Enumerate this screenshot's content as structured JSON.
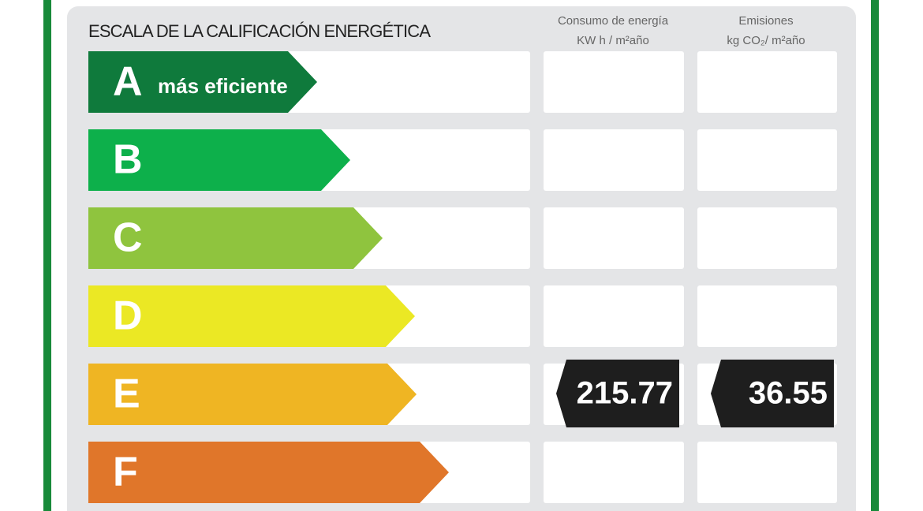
{
  "title": "ESCALA DE LA CALIFICACIÓN ENERGÉTICA",
  "columns": [
    {
      "line_1": "Consumo de energía",
      "line_2": "KW h / m²año"
    },
    {
      "line_1": "Emisiones",
      "line_2": "kg CO₂/ m²año"
    }
  ],
  "rows": [
    {
      "letter": "A",
      "label": "más eficiente",
      "color": "#0f7a3c"
    },
    {
      "letter": "B",
      "color": "#0db04b"
    },
    {
      "letter": "C",
      "color": "#8fc43e"
    },
    {
      "letter": "D",
      "color": "#ebe824"
    },
    {
      "letter": "E",
      "color": "#efb523",
      "energy": 215.77,
      "emissions": 36.55
    },
    {
      "letter": "F",
      "color": "#e0762a"
    }
  ]
}
